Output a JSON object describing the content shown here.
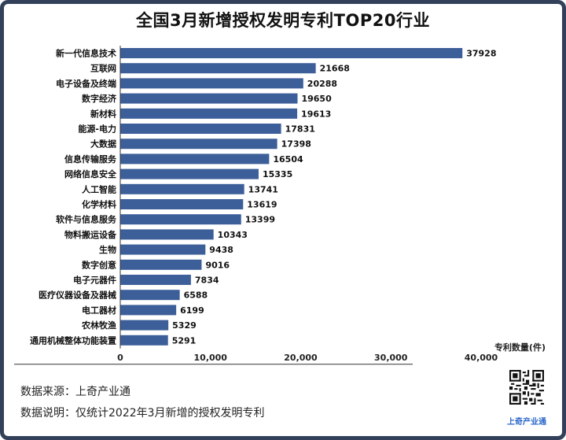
{
  "chart_data": {
    "type": "bar",
    "orientation": "horizontal",
    "title": "全国3月新增授权发明专利TOP20行业",
    "xlabel": "专利数量(件)",
    "ylabel": "",
    "xlim": [
      0,
      40000
    ],
    "x_ticks": [
      "0",
      "10,000",
      "20,000",
      "30,000",
      "40,000"
    ],
    "grid": false,
    "bar_color": "#3d5f99",
    "categories": [
      "新一代信息技术",
      "互联网",
      "电子设备及终端",
      "数字经济",
      "新材料",
      "能源-电力",
      "大数据",
      "信息传输服务",
      "网络信息安全",
      "人工智能",
      "化学材料",
      "软件与信息服务",
      "物料搬运设备",
      "生物",
      "数字创意",
      "电子元器件",
      "医疗仪器设备及器械",
      "电工器材",
      "农林牧渔",
      "通用机械整体功能装置"
    ],
    "values": [
      37928,
      21668,
      20288,
      19650,
      19613,
      17831,
      17398,
      16504,
      15335,
      13741,
      13619,
      13399,
      10343,
      9438,
      9016,
      7834,
      6588,
      6199,
      5329,
      5291
    ]
  },
  "footer": {
    "source": "数据来源：上奇产业通",
    "note": "数据说明：仅统计2022年3月新增的授权发明专利"
  },
  "brand": {
    "label": "上奇产业通",
    "qr_icon": "qr-code-icon"
  }
}
